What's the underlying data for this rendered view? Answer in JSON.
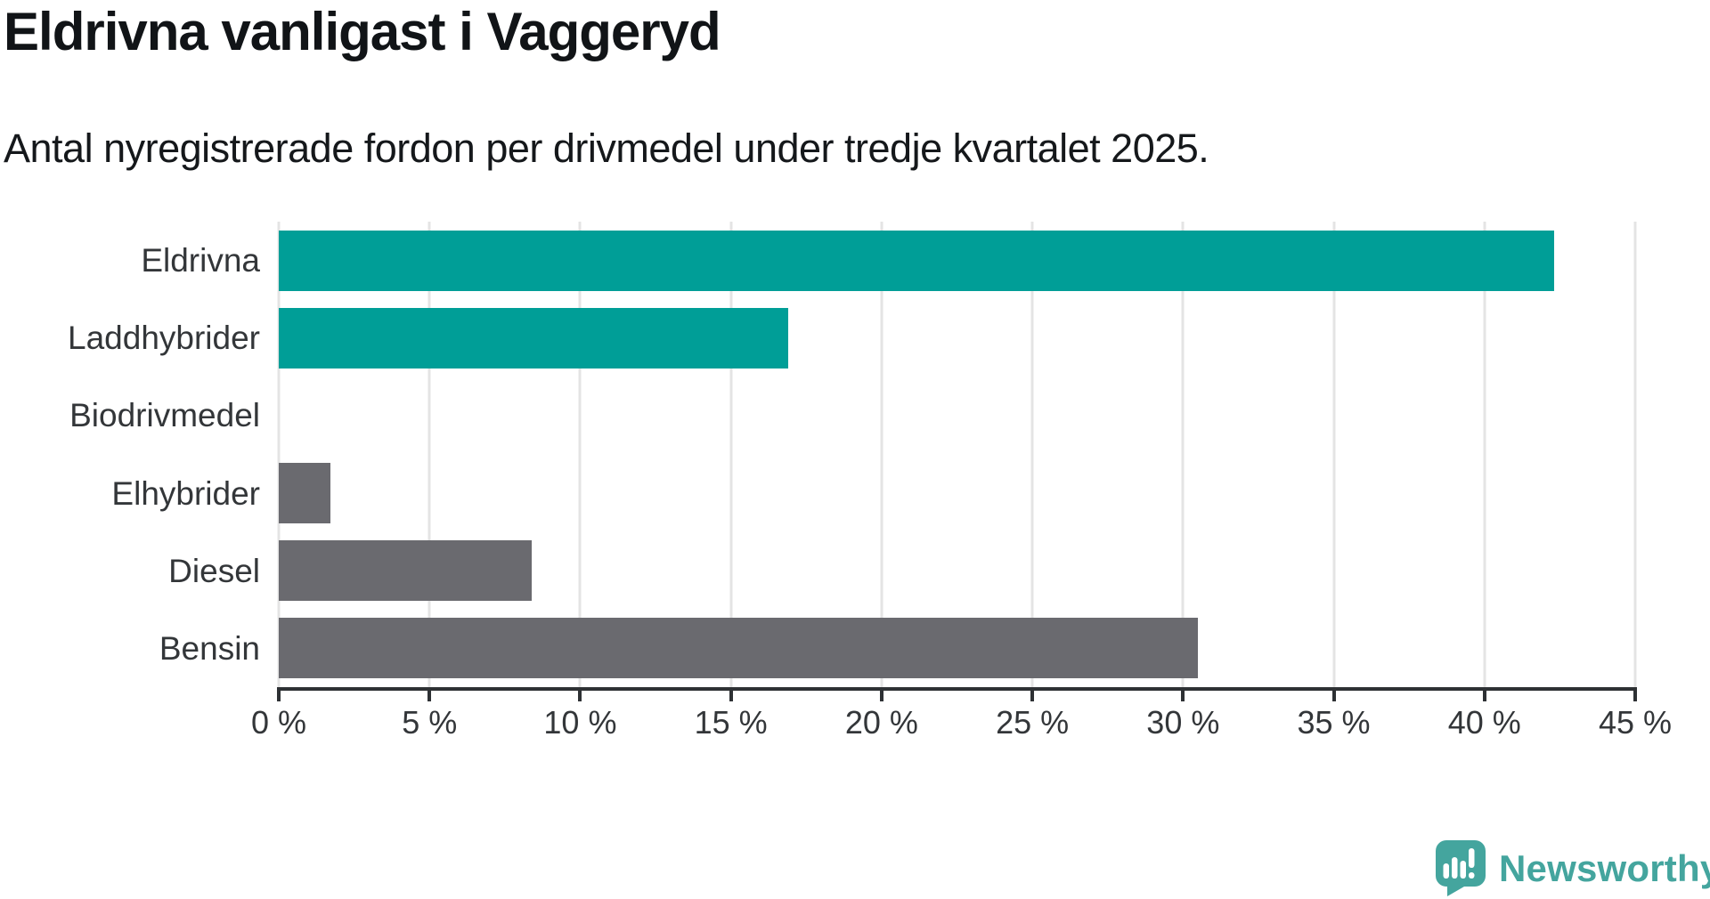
{
  "title": "Eldrivna vanligast i Vaggeryd",
  "subtitle": "Antal nyregistrerade fordon per drivmedel under tredje kvartalet 2025.",
  "chart_data": {
    "type": "bar",
    "orientation": "horizontal",
    "title": "Eldrivna vanligast i Vaggeryd",
    "subtitle": "Antal nyregistrerade fordon per drivmedel under tredje kvartalet 2025.",
    "categories": [
      "Eldrivna",
      "Laddhybrider",
      "Biodrivmedel",
      "Elhybrider",
      "Diesel",
      "Bensin"
    ],
    "values": [
      42.3,
      16.9,
      0,
      1.7,
      8.4,
      30.5
    ],
    "unit": "%",
    "series_colors": [
      "#009e97",
      "#009e97",
      "#6a6a6f",
      "#6a6a6f",
      "#6a6a6f",
      "#6a6a6f"
    ],
    "highlight_color": "#009e97",
    "base_color": "#6a6a6f",
    "xlim": [
      0,
      45
    ],
    "x_ticks": [
      0,
      5,
      10,
      15,
      20,
      25,
      30,
      35,
      40,
      45
    ],
    "x_tick_labels": [
      "0 %",
      "5 %",
      "10 %",
      "15 %",
      "20 %",
      "25 %",
      "30 %",
      "35 %",
      "40 %",
      "45 %"
    ],
    "grid": "vertical",
    "gridline_color": "#e4e4e4",
    "axis_color": "#2e3134",
    "label_color": "#333639",
    "legend": "none"
  },
  "footer": {
    "brand": "Newsworthy",
    "brand_color": "#44a59e",
    "logo_icon": "speech-bubble-bar-chart-icon"
  }
}
